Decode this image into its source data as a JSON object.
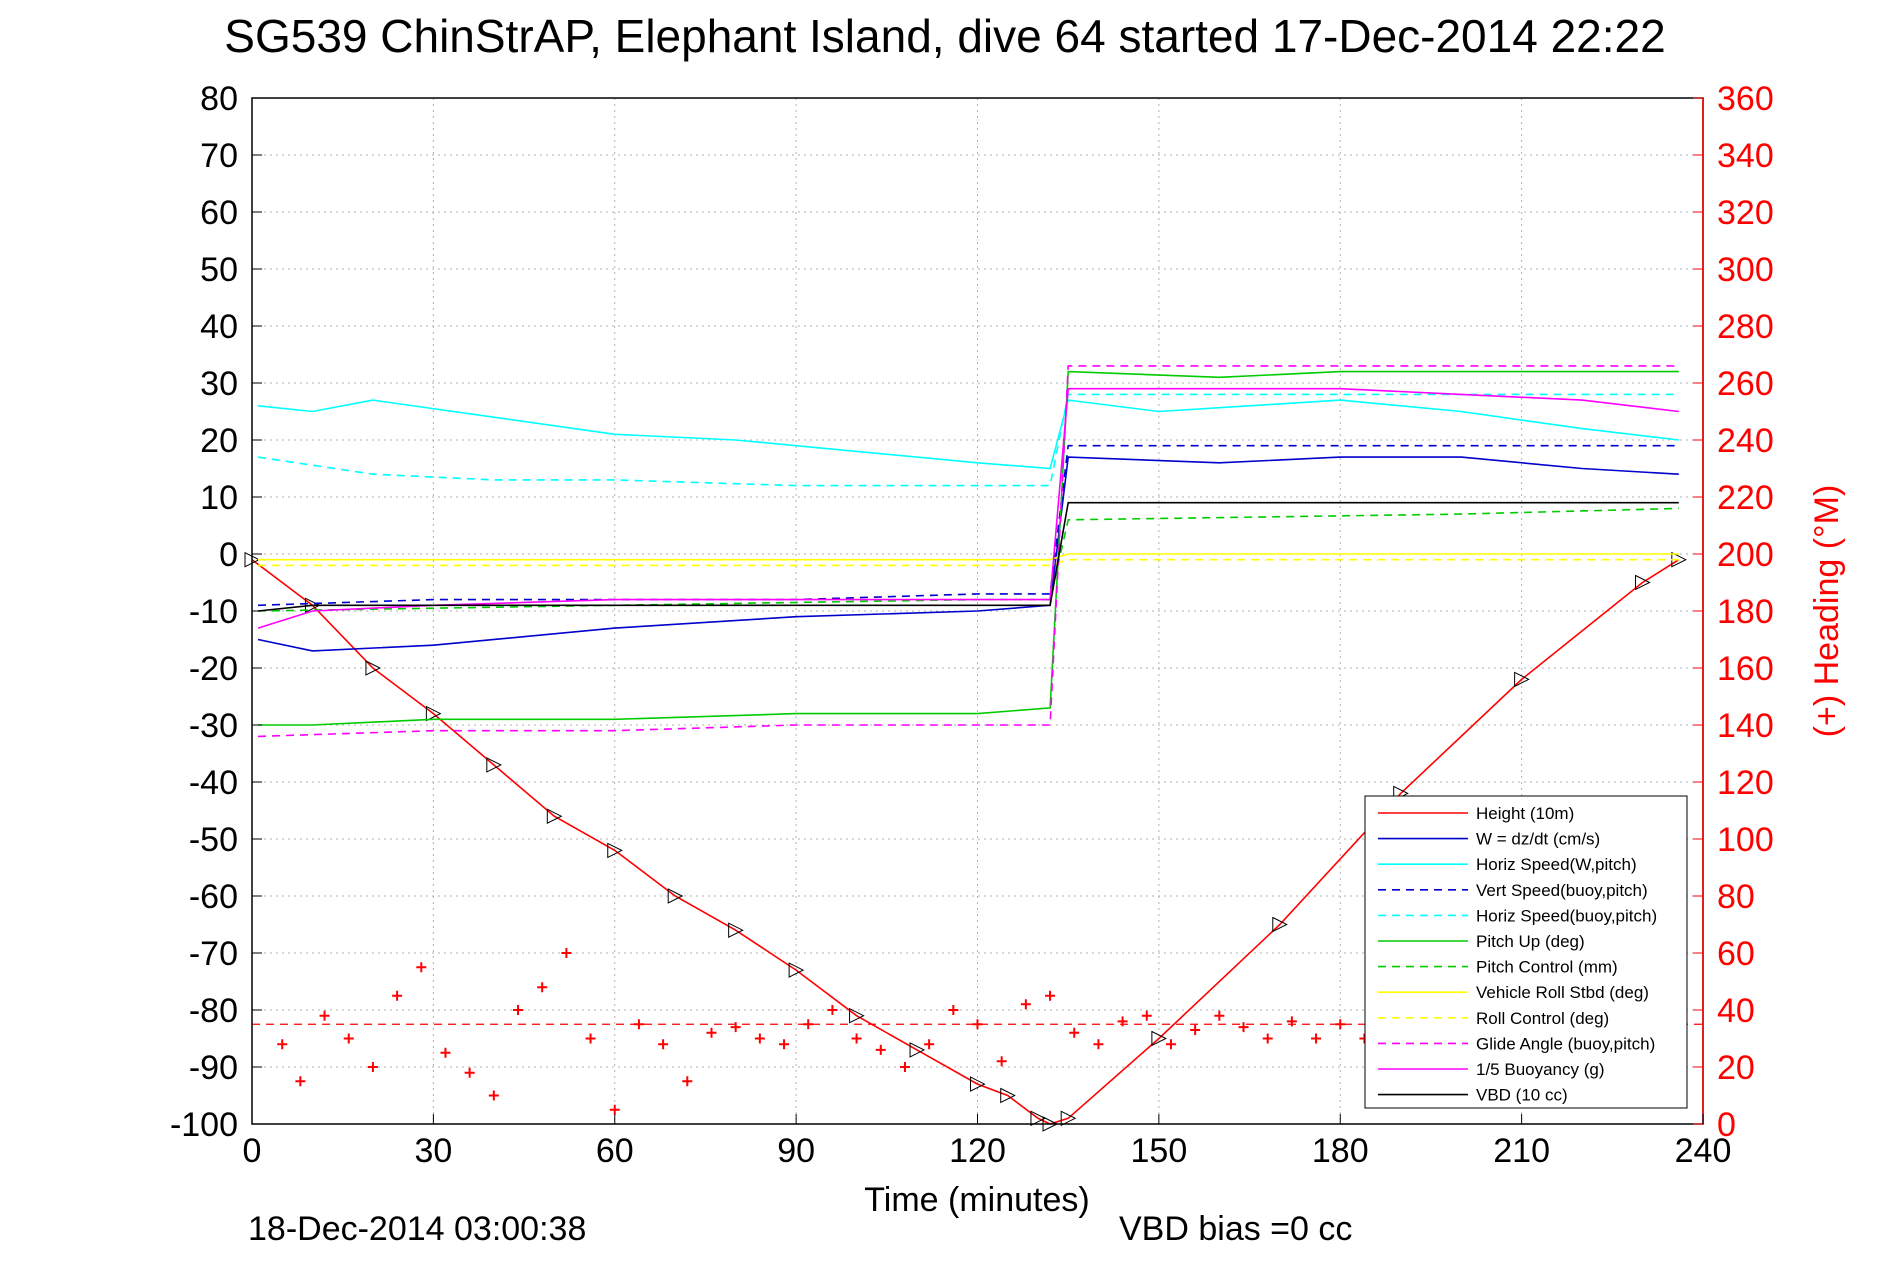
{
  "chart_data": {
    "type": "line",
    "title": "SG539 ChinStrAP, Elephant Island, dive 64 started 17-Dec-2014 22:22",
    "xlabel": "Time (minutes)",
    "ylabel_right": "(+) Heading (°M)",
    "xlim": [
      0,
      240
    ],
    "ylim": [
      -100,
      80
    ],
    "y2lim": [
      0,
      360
    ],
    "x_ticks": [
      "0",
      "30",
      "60",
      "90",
      "120",
      "150",
      "180",
      "210",
      "240"
    ],
    "y_ticks": [
      "80",
      "70",
      "60",
      "50",
      "40",
      "30",
      "20",
      "10",
      "0",
      "-10",
      "-20",
      "-30",
      "-40",
      "-50",
      "-60",
      "-70",
      "-80",
      "-90",
      "-100"
    ],
    "y2_ticks": [
      "360",
      "340",
      "320",
      "300",
      "280",
      "260",
      "240",
      "220",
      "200",
      "180",
      "160",
      "140",
      "120",
      "100",
      "80",
      "60",
      "40",
      "20",
      "0"
    ],
    "grid": true,
    "legend_position": "bottom-right",
    "footer_time": "18-Dec-2014 03:00:38",
    "footer_bias": "VBD bias =0 cc",
    "series": [
      {
        "name": "Height (10m)",
        "color": "#ff0000",
        "style": "solid",
        "x": [
          0,
          10,
          20,
          30,
          40,
          50,
          60,
          70,
          80,
          90,
          100,
          110,
          120,
          125,
          130,
          132,
          135,
          150,
          170,
          190,
          210,
          230,
          236
        ],
        "y": [
          -1,
          -9,
          -20,
          -28,
          -37,
          -46,
          -52,
          -60,
          -66,
          -73,
          -81,
          -87,
          -93,
          -95,
          -99,
          -100,
          -99,
          -85,
          -65,
          -42,
          -22,
          -5,
          -1
        ]
      },
      {
        "name": "W = dz/dt (cm/s)",
        "color": "#0000cc",
        "style": "solid",
        "x": [
          1,
          10,
          30,
          60,
          90,
          120,
          132,
          135,
          160,
          180,
          200,
          220,
          236
        ],
        "y": [
          -15,
          -17,
          -16,
          -13,
          -11,
          -10,
          -9,
          17,
          16,
          17,
          17,
          15,
          14
        ]
      },
      {
        "name": "Horiz Speed(W,pitch)",
        "color": "#00ffff",
        "style": "solid",
        "x": [
          1,
          10,
          20,
          40,
          60,
          80,
          100,
          120,
          132,
          135,
          150,
          180,
          200,
          220,
          236
        ],
        "y": [
          26,
          25,
          27,
          24,
          21,
          20,
          18,
          16,
          15,
          27,
          25,
          27,
          25,
          22,
          20
        ]
      },
      {
        "name": "Vert Speed(buoy,pitch)",
        "color": "#0000cc",
        "style": "dashed",
        "x": [
          1,
          30,
          60,
          90,
          120,
          132,
          135,
          160,
          200,
          236
        ],
        "y": [
          -9,
          -8,
          -8,
          -8,
          -7,
          -7,
          19,
          19,
          19,
          19
        ]
      },
      {
        "name": "Horiz Speed(buoy,pitch)",
        "color": "#00ffff",
        "style": "dashed",
        "x": [
          1,
          20,
          40,
          60,
          90,
          120,
          132,
          135,
          160,
          200,
          236
        ],
        "y": [
          17,
          14,
          13,
          13,
          12,
          12,
          12,
          28,
          28,
          28,
          28
        ]
      },
      {
        "name": "Pitch Up (deg)",
        "color": "#00cc00",
        "style": "solid",
        "x": [
          1,
          10,
          30,
          60,
          90,
          120,
          132,
          135,
          160,
          180,
          200,
          220,
          236
        ],
        "y": [
          -30,
          -30,
          -29,
          -29,
          -28,
          -28,
          -27,
          32,
          31,
          32,
          32,
          32,
          32
        ]
      },
      {
        "name": "Pitch Control (mm)",
        "color": "#00cc00",
        "style": "dashed",
        "x": [
          1,
          60,
          120,
          132,
          135,
          200,
          236
        ],
        "y": [
          -10,
          -9,
          -8,
          -8,
          6,
          7,
          8
        ]
      },
      {
        "name": "Vehicle Roll Stbd (deg)",
        "color": "#ffff00",
        "style": "solid",
        "x": [
          1,
          30,
          60,
          90,
          120,
          132,
          135,
          180,
          236
        ],
        "y": [
          -1,
          -1,
          -1,
          -1,
          -1,
          -1,
          0,
          0,
          0
        ]
      },
      {
        "name": "Roll Control (deg)",
        "color": "#ffff00",
        "style": "dashed",
        "x": [
          1,
          60,
          132,
          135,
          236
        ],
        "y": [
          -2,
          -2,
          -2,
          -1,
          -1
        ]
      },
      {
        "name": "Glide Angle (buoy,pitch)",
        "color": "#ff00ff",
        "style": "dashed",
        "x": [
          1,
          30,
          60,
          90,
          120,
          132,
          135,
          180,
          236
        ],
        "y": [
          -32,
          -31,
          -31,
          -30,
          -30,
          -30,
          33,
          33,
          33
        ]
      },
      {
        "name": "1/5 Buoyancy (g)",
        "color": "#ff00ff",
        "style": "solid",
        "x": [
          1,
          10,
          30,
          60,
          90,
          120,
          132,
          135,
          180,
          200,
          220,
          236
        ],
        "y": [
          -13,
          -10,
          -9,
          -8,
          -8,
          -8,
          -8,
          29,
          29,
          28,
          27,
          25
        ]
      },
      {
        "name": "VBD (10 cc)",
        "color": "#000000",
        "style": "solid",
        "x": [
          1,
          10,
          60,
          120,
          132,
          135,
          150,
          200,
          236
        ],
        "y": [
          -10,
          -9,
          -9,
          -9,
          -9,
          9,
          9,
          9,
          9
        ]
      }
    ],
    "heading": {
      "color": "#ff0000",
      "marker": "+",
      "x": [
        5,
        8,
        12,
        16,
        20,
        24,
        28,
        32,
        36,
        40,
        44,
        48,
        52,
        56,
        60,
        64,
        68,
        72,
        76,
        80,
        84,
        88,
        92,
        96,
        100,
        104,
        108,
        112,
        116,
        120,
        124,
        128,
        132,
        136,
        140,
        144,
        148,
        152,
        156,
        160,
        164,
        168,
        172,
        176,
        180,
        184,
        188,
        192,
        196
      ],
      "y": [
        28,
        15,
        38,
        30,
        20,
        45,
        55,
        25,
        18,
        10,
        40,
        48,
        60,
        30,
        5,
        35,
        28,
        15,
        32,
        34,
        30,
        28,
        35,
        40,
        30,
        26,
        20,
        28,
        40,
        35,
        22,
        42,
        45,
        32,
        28,
        36,
        38,
        28,
        33,
        38,
        34,
        30,
        36,
        30,
        35,
        30,
        32,
        28,
        30
      ]
    },
    "heading_mean": {
      "color": "#ff0000",
      "style": "dashed",
      "y": 35
    }
  }
}
